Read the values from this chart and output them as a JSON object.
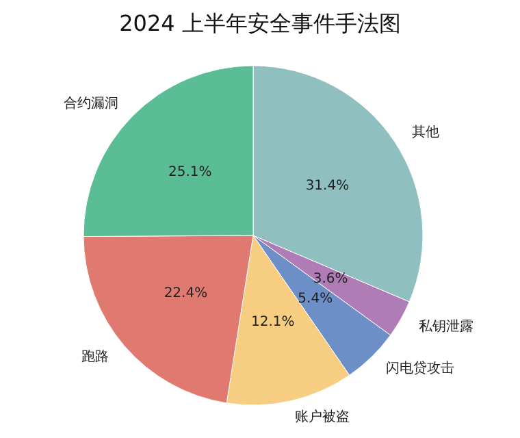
{
  "chart_data": {
    "type": "pie",
    "title": "2024 上半年安全事件手法图",
    "categories": [
      "其他",
      "私钥泄露",
      "闪电贷攻击",
      "账户被盗",
      "跑路",
      "合约漏洞"
    ],
    "values": [
      31.4,
      3.6,
      5.4,
      12.1,
      22.4,
      25.1
    ],
    "value_labels": [
      "31.4%",
      "3.6%",
      "5.4%",
      "12.1%",
      "22.4%",
      "25.1%"
    ],
    "colors": [
      "#8fbfbf",
      "#b07cb6",
      "#6d8fc8",
      "#f7cd82",
      "#e07a70",
      "#5bbd96"
    ],
    "legend": false
  }
}
